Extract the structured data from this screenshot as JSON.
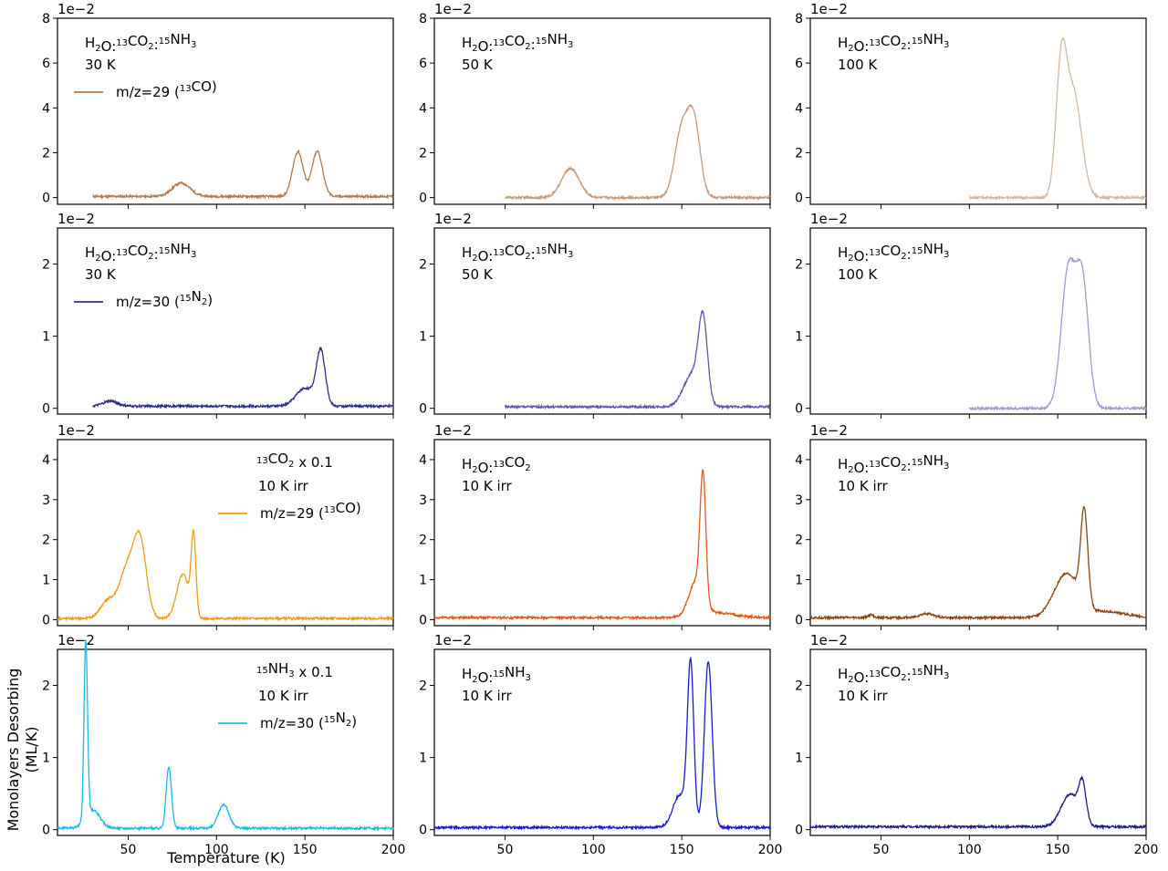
{
  "figure": {
    "xlabel": "Temperature (K)",
    "ylabel_line1": "Monolayers Desorbing",
    "ylabel_line2": "(ML/K)"
  },
  "chart_data": [
    {
      "type": "line",
      "row": 0,
      "col": 0,
      "xlim": [
        10,
        200
      ],
      "ylim": [
        -0.3,
        8
      ],
      "yticks": [
        0,
        2,
        4,
        6,
        8
      ],
      "xticks": [
        50,
        100,
        150,
        200
      ],
      "exponent": "1e−2",
      "color": "#b07a4e",
      "x_start": 30,
      "x_end": 200,
      "baseline": 0.05,
      "peaks": [
        {
          "center": 80,
          "height": 0.6,
          "width": 5
        },
        {
          "center": 146,
          "height": 2.0,
          "width": 3
        },
        {
          "center": 157,
          "height": 2.0,
          "width": 3
        }
      ],
      "annotation": [
        "H2O:13CO2:15NH3",
        "30 K"
      ],
      "legend": "m/z=29 (13CO)",
      "show_xlabels": false
    },
    {
      "type": "line",
      "row": 0,
      "col": 1,
      "xlim": [
        10,
        200
      ],
      "ylim": [
        -0.3,
        8
      ],
      "yticks": [
        0,
        2,
        4,
        6,
        8
      ],
      "xticks": [
        50,
        100,
        150,
        200
      ],
      "exponent": "1e−2",
      "color": "#c49a7a",
      "x_start": 50,
      "x_end": 200,
      "baseline": 0.0,
      "peaks": [
        {
          "center": 87,
          "height": 1.3,
          "width": 5
        },
        {
          "center": 150,
          "height": 3.0,
          "width": 4
        },
        {
          "center": 157,
          "height": 3.2,
          "width": 3.5
        }
      ],
      "annotation": [
        "H2O:13CO2:15NH3",
        "50 K"
      ],
      "legend": "",
      "show_xlabels": false
    },
    {
      "type": "line",
      "row": 0,
      "col": 2,
      "xlim": [
        10,
        200
      ],
      "ylim": [
        -0.3,
        8
      ],
      "yticks": [
        0,
        2,
        4,
        6,
        8
      ],
      "xticks": [
        50,
        100,
        150,
        200
      ],
      "exponent": "1e−2",
      "color": "#d6b8a0",
      "x_start": 100,
      "x_end": 200,
      "baseline": 0.0,
      "peaks": [
        {
          "center": 152,
          "height": 5.5,
          "width": 3
        },
        {
          "center": 159,
          "height": 4.6,
          "width": 4.5
        }
      ],
      "annotation": [
        "H2O:13CO2:15NH3",
        "100 K"
      ],
      "legend": "",
      "show_xlabels": false
    },
    {
      "type": "line",
      "row": 1,
      "col": 0,
      "xlim": [
        10,
        200
      ],
      "ylim": [
        -0.08,
        2.5
      ],
      "yticks": [
        0,
        1,
        2
      ],
      "xticks": [
        50,
        100,
        150,
        200
      ],
      "exponent": "1e−2",
      "color": "#2d2c8a",
      "x_start": 30,
      "x_end": 200,
      "baseline": 0.03,
      "peaks": [
        {
          "center": 40,
          "height": 0.07,
          "width": 4
        },
        {
          "center": 150,
          "height": 0.25,
          "width": 5
        },
        {
          "center": 159,
          "height": 0.75,
          "width": 2.5
        }
      ],
      "annotation": [
        "H2O:13CO2:15NH3",
        "30 K"
      ],
      "legend": "m/z=30 (15N2)",
      "show_xlabels": false
    },
    {
      "type": "line",
      "row": 1,
      "col": 1,
      "xlim": [
        10,
        200
      ],
      "ylim": [
        -0.08,
        2.5
      ],
      "yticks": [
        0,
        1,
        2
      ],
      "xticks": [
        50,
        100,
        150,
        200
      ],
      "exponent": "1e−2",
      "color": "#5a5aa8",
      "x_start": 50,
      "x_end": 200,
      "baseline": 0.02,
      "peaks": [
        {
          "center": 156,
          "height": 0.45,
          "width": 5
        },
        {
          "center": 162,
          "height": 1.1,
          "width": 2.5
        }
      ],
      "annotation": [
        "H2O:13CO2:15NH3",
        "50 K"
      ],
      "legend": "",
      "show_xlabels": false
    },
    {
      "type": "line",
      "row": 1,
      "col": 2,
      "xlim": [
        10,
        200
      ],
      "ylim": [
        -0.08,
        2.5
      ],
      "yticks": [
        0,
        1,
        2
      ],
      "xticks": [
        50,
        100,
        150,
        200
      ],
      "exponent": "1e−2",
      "color": "#9c9cd0",
      "x_start": 100,
      "x_end": 200,
      "baseline": 0.0,
      "peaks": [
        {
          "center": 156,
          "height": 1.9,
          "width": 4
        },
        {
          "center": 164,
          "height": 1.7,
          "width": 3.5
        }
      ],
      "annotation": [
        "H2O:13CO2:15NH3",
        "100 K"
      ],
      "legend": "",
      "show_xlabels": false
    },
    {
      "type": "line",
      "row": 2,
      "col": 0,
      "xlim": [
        10,
        200
      ],
      "ylim": [
        -0.15,
        4.5
      ],
      "yticks": [
        0,
        1,
        2,
        3,
        4
      ],
      "xticks": [
        50,
        100,
        150,
        200
      ],
      "exponent": "1e−2",
      "color": "#f39a1e",
      "x_start": 10,
      "x_end": 200,
      "baseline": 0.03,
      "peaks": [
        {
          "center": 38,
          "height": 0.4,
          "width": 4
        },
        {
          "center": 50,
          "height": 1.3,
          "width": 5
        },
        {
          "center": 57,
          "height": 1.6,
          "width": 3.5
        },
        {
          "center": 81,
          "height": 1.1,
          "width": 3.5
        },
        {
          "center": 87,
          "height": 1.95,
          "width": 1.3
        }
      ],
      "annotation": [
        "13CO2 x 0.1",
        "10 K irr"
      ],
      "legend": "m/z=29 (13CO)",
      "show_xlabels": false
    },
    {
      "type": "line",
      "row": 2,
      "col": 1,
      "xlim": [
        10,
        200
      ],
      "ylim": [
        -0.15,
        4.5
      ],
      "yticks": [
        0,
        1,
        2,
        3,
        4
      ],
      "xticks": [
        50,
        100,
        150,
        200
      ],
      "exponent": "1e−2",
      "color": "#e05a1e",
      "x_start": 10,
      "x_end": 200,
      "baseline": 0.05,
      "peaks": [
        {
          "center": 158,
          "height": 0.85,
          "width": 4
        },
        {
          "center": 162,
          "height": 3.1,
          "width": 1.6
        },
        {
          "center": 170,
          "height": 0.12,
          "width": 10
        }
      ],
      "annotation": [
        "H2O:13CO2",
        "10 K irr"
      ],
      "legend": "",
      "show_xlabels": false
    },
    {
      "type": "line",
      "row": 2,
      "col": 2,
      "xlim": [
        10,
        200
      ],
      "ylim": [
        -0.15,
        4.5
      ],
      "yticks": [
        0,
        1,
        2,
        3,
        4
      ],
      "xticks": [
        50,
        100,
        150,
        200
      ],
      "exponent": "1e−2",
      "color": "#8b4513",
      "x_start": 10,
      "x_end": 200,
      "baseline": 0.05,
      "peaks": [
        {
          "center": 44,
          "height": 0.07,
          "width": 1.5
        },
        {
          "center": 76,
          "height": 0.1,
          "width": 4
        },
        {
          "center": 155,
          "height": 1.1,
          "width": 7
        },
        {
          "center": 165,
          "height": 2.3,
          "width": 2
        },
        {
          "center": 178,
          "height": 0.15,
          "width": 10
        }
      ],
      "annotation": [
        "H2O:13CO2:15NH3",
        "10 K irr"
      ],
      "legend": "",
      "show_xlabels": false
    },
    {
      "type": "line",
      "row": 3,
      "col": 0,
      "xlim": [
        10,
        200
      ],
      "ylim": [
        -0.08,
        2.5
      ],
      "yticks": [
        0,
        1,
        2
      ],
      "xticks": [
        50,
        100,
        150,
        200
      ],
      "exponent": "1e−2",
      "color": "#1eb8e6",
      "x_start": 10,
      "x_end": 200,
      "baseline": 0.02,
      "peaks": [
        {
          "center": 26,
          "height": 2.45,
          "width": 1.0
        },
        {
          "center": 30,
          "height": 0.25,
          "width": 4
        },
        {
          "center": 73,
          "height": 0.85,
          "width": 1.5
        },
        {
          "center": 104,
          "height": 0.33,
          "width": 3
        }
      ],
      "annotation": [
        "15NH3 x 0.1",
        "10 K irr"
      ],
      "legend": "m/z=30 (15N2)",
      "show_xlabels": true
    },
    {
      "type": "line",
      "row": 3,
      "col": 1,
      "xlim": [
        10,
        200
      ],
      "ylim": [
        -0.08,
        2.5
      ],
      "yticks": [
        0,
        1,
        2
      ],
      "xticks": [
        50,
        100,
        150,
        200
      ],
      "exponent": "1e−2",
      "color": "#1a1ad6",
      "x_start": 10,
      "x_end": 200,
      "baseline": 0.03,
      "peaks": [
        {
          "center": 149,
          "height": 0.45,
          "width": 4
        },
        {
          "center": 155,
          "height": 2.2,
          "width": 1.8
        },
        {
          "center": 165,
          "height": 2.3,
          "width": 2.2
        }
      ],
      "annotation": [
        "H2O:15NH3",
        "10 K irr"
      ],
      "legend": "",
      "show_xlabels": true
    },
    {
      "type": "line",
      "row": 3,
      "col": 2,
      "xlim": [
        10,
        200
      ],
      "ylim": [
        -0.08,
        2.5
      ],
      "yticks": [
        0,
        1,
        2
      ],
      "xticks": [
        50,
        100,
        150,
        200
      ],
      "exponent": "1e−2",
      "color": "#1a1a8a",
      "x_start": 10,
      "x_end": 200,
      "baseline": 0.04,
      "peaks": [
        {
          "center": 157,
          "height": 0.45,
          "width": 5
        },
        {
          "center": 164,
          "height": 0.5,
          "width": 2
        }
      ],
      "annotation": [
        "H2O:13CO2:15NH3",
        "10 K irr"
      ],
      "legend": "",
      "show_xlabels": true
    }
  ]
}
